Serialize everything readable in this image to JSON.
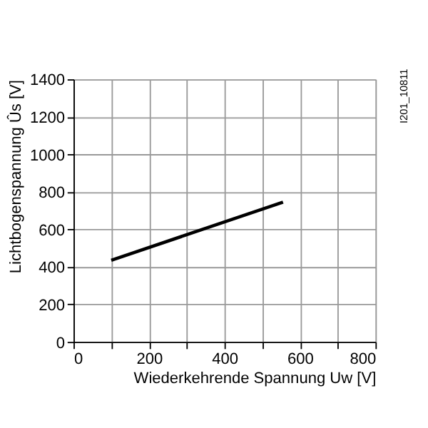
{
  "chart_data": {
    "type": "line",
    "xlabel": "Wiederkehrende Spannung Uw [V]",
    "ylabel": "Lichtbogenspannung Ûs [V]",
    "annotations": [
      "I201_10811"
    ],
    "x": [
      100,
      555
    ],
    "series": [
      {
        "color": "#000000",
        "values": [
          435,
          745
        ]
      }
    ],
    "xlim": [
      0,
      800
    ],
    "xticks": [
      0,
      {
        "value": 100,
        "label": null
      },
      200,
      {
        "value": 300,
        "label": null
      },
      400,
      {
        "value": 500,
        "label": null
      },
      600,
      {
        "value": 700,
        "label": null
      },
      800
    ],
    "ylim": [
      0,
      1400
    ],
    "yticks": [
      0,
      200,
      400,
      600,
      800,
      1000,
      1200,
      1400
    ],
    "grid": true,
    "marker": "none",
    "line_style": "solid"
  }
}
